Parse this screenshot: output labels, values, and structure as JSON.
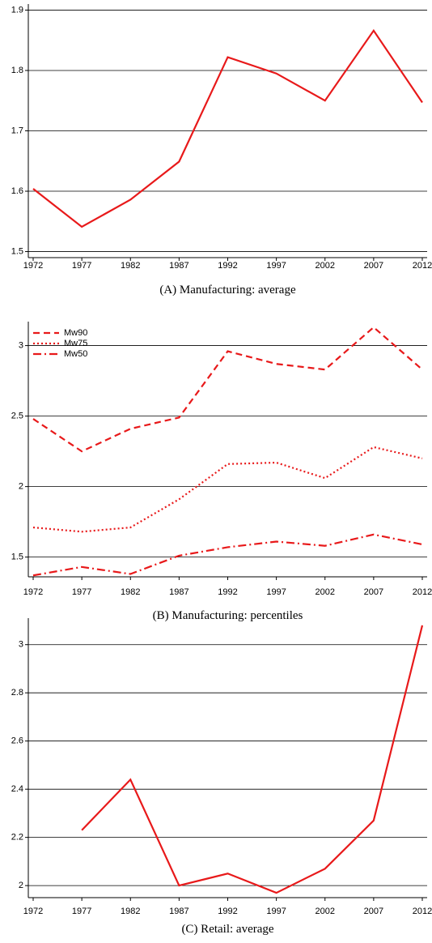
{
  "chart_data": [
    {
      "type": "line",
      "title": "(A) Manufacturing: average",
      "x": [
        1972,
        1977,
        1982,
        1987,
        1992,
        1997,
        2002,
        2007,
        2012
      ],
      "xlim": [
        1972,
        2012
      ],
      "xticks": [
        1972,
        1977,
        1982,
        1987,
        1992,
        1997,
        2002,
        2007,
        2012
      ],
      "values": [
        1.604,
        1.541,
        1.586,
        1.649,
        1.822,
        1.795,
        1.75,
        1.866,
        1.747
      ],
      "color": "#e8191a",
      "ylim": [
        1.49,
        1.91
      ],
      "yticks": [
        1.5,
        1.6,
        1.7,
        1.8,
        1.9
      ],
      "grid": true
    },
    {
      "type": "line",
      "title": "(B) Manufacturing: percentiles",
      "x": [
        1972,
        1977,
        1982,
        1987,
        1992,
        1997,
        2002,
        2007,
        2012
      ],
      "xlim": [
        1972,
        2012
      ],
      "xticks": [
        1972,
        1977,
        1982,
        1987,
        1992,
        1997,
        2002,
        2007,
        2012
      ],
      "series": [
        {
          "name": "Mw90",
          "color": "#e8191a",
          "dash": "dashed",
          "values": [
            2.48,
            2.25,
            2.41,
            2.49,
            2.96,
            2.87,
            2.83,
            3.13,
            2.83
          ]
        },
        {
          "name": "Mw75",
          "color": "#e8191a",
          "dash": "dotted",
          "values": [
            1.71,
            1.68,
            1.71,
            1.91,
            2.16,
            2.17,
            2.06,
            2.28,
            2.2
          ]
        },
        {
          "name": "Mw50",
          "color": "#e8191a",
          "dash": "dashdot",
          "values": [
            1.37,
            1.43,
            1.38,
            1.51,
            1.57,
            1.61,
            1.58,
            1.66,
            1.59
          ]
        }
      ],
      "legend": "upper left",
      "ylim": [
        1.36,
        3.17
      ],
      "yticks": [
        1.5,
        2,
        2.5,
        3
      ],
      "grid": true
    },
    {
      "type": "line",
      "title": "(C) Retail: average",
      "x": [
        1972,
        1977,
        1982,
        1987,
        1992,
        1997,
        2002,
        2007,
        2012
      ],
      "xlim": [
        1972,
        2012
      ],
      "xticks": [
        1972,
        1977,
        1982,
        1987,
        1992,
        1997,
        2002,
        2007,
        2012
      ],
      "values": [
        null,
        2.23,
        2.44,
        2.0,
        2.05,
        1.97,
        2.07,
        2.27,
        3.08
      ],
      "color": "#e8191a",
      "ylim": [
        1.95,
        3.11
      ],
      "yticks": [
        2,
        2.2,
        2.4,
        2.6,
        2.8,
        3
      ],
      "grid": true
    }
  ]
}
